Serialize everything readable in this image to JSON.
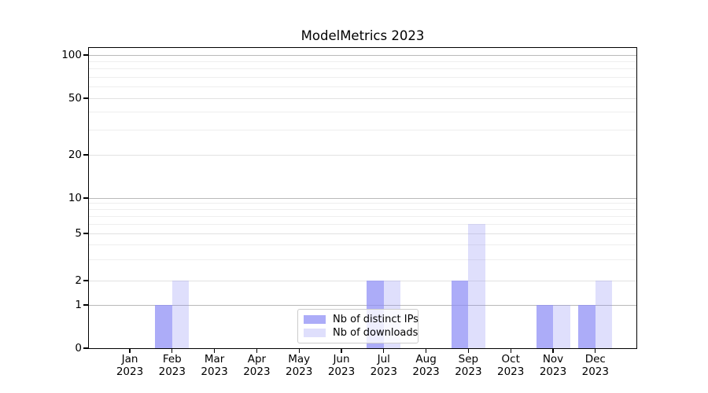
{
  "chart_data": {
    "type": "bar",
    "title": "ModelMetrics 2023",
    "categories": [
      "Jan",
      "Feb",
      "Mar",
      "Apr",
      "May",
      "Jun",
      "Jul",
      "Aug",
      "Sep",
      "Oct",
      "Nov",
      "Dec"
    ],
    "category_year": "2023",
    "series": [
      {
        "name": "Nb of distinct IPs",
        "color": "rgba(140,140,245,0.72)",
        "values": [
          0,
          1,
          0,
          0,
          0,
          0,
          2,
          0,
          2,
          0,
          1,
          1
        ]
      },
      {
        "name": "Nb of downloads",
        "color": "rgba(140,140,245,0.28)",
        "values": [
          0,
          2,
          0,
          0,
          0,
          0,
          2,
          0,
          6,
          0,
          1,
          2
        ]
      }
    ],
    "y_axis": {
      "scale": "symlog",
      "tick_labels": [
        "0",
        "1",
        "2",
        "5",
        "10",
        "20",
        "50",
        "100"
      ],
      "tick_values": [
        0,
        1,
        2,
        5,
        10,
        20,
        50,
        100
      ],
      "minor_values": [
        3,
        4,
        6,
        7,
        8,
        9,
        30,
        40,
        60,
        70,
        80,
        90
      ],
      "ylim": [
        0,
        114
      ]
    },
    "x_axis": {
      "label_line2": "2023"
    },
    "legend": {
      "position": "lower center"
    },
    "grid": "both"
  }
}
